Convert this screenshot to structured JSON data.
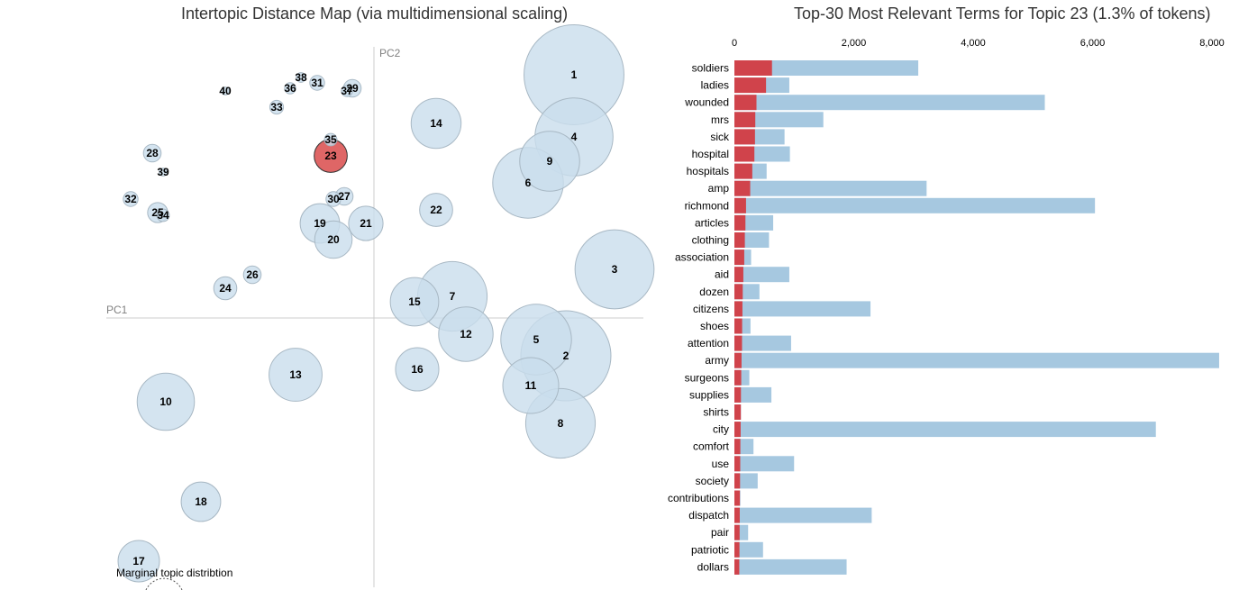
{
  "map": {
    "title": "Intertopic Distance Map (via multidimensional scaling)",
    "pc1_label": "PC1",
    "pc2_label": "PC2",
    "marginal_label": "Marginal topic distribtion"
  },
  "bars": {
    "title": "Top-30 Most Relevant Terms for Topic 23 (1.3% of tokens)"
  },
  "colors": {
    "bubble_fill": "#c9ddec",
    "bubble_stroke": "#a8b8c4",
    "selected_fill": "#d94b4b",
    "overall_bar": "#a6c8e0",
    "topic_bar": "#d0434b",
    "axis_line": "#cccccc"
  },
  "chart_data": [
    {
      "type": "scatter",
      "title": "Intertopic Distance Map (via multidimensional scaling)",
      "xlabel": "PC1",
      "ylabel": "PC2",
      "selected_topic": 23,
      "legend": "Marginal topic distribtion",
      "points": [
        {
          "topic": 1,
          "x": 0.74,
          "y": 0.9,
          "size": 3.2
        },
        {
          "topic": 2,
          "x": 0.71,
          "y": -0.14,
          "size": 2.6
        },
        {
          "topic": 3,
          "x": 0.89,
          "y": 0.18,
          "size": 2.0
        },
        {
          "topic": 4,
          "x": 0.74,
          "y": 0.67,
          "size": 1.95
        },
        {
          "topic": 5,
          "x": 0.6,
          "y": -0.08,
          "size": 1.6
        },
        {
          "topic": 6,
          "x": 0.57,
          "y": 0.5,
          "size": 1.6
        },
        {
          "topic": 7,
          "x": 0.29,
          "y": 0.08,
          "size": 1.55
        },
        {
          "topic": 8,
          "x": 0.69,
          "y": -0.39,
          "size": 1.55
        },
        {
          "topic": 9,
          "x": 0.65,
          "y": 0.58,
          "size": 1.15
        },
        {
          "topic": 10,
          "x": -0.77,
          "y": -0.31,
          "size": 1.05
        },
        {
          "topic": 11,
          "x": 0.58,
          "y": -0.25,
          "size": 1.0
        },
        {
          "topic": 12,
          "x": 0.34,
          "y": -0.06,
          "size": 0.95
        },
        {
          "topic": 13,
          "x": -0.29,
          "y": -0.21,
          "size": 0.9
        },
        {
          "topic": 14,
          "x": 0.23,
          "y": 0.72,
          "size": 0.8
        },
        {
          "topic": 15,
          "x": 0.15,
          "y": 0.06,
          "size": 0.75
        },
        {
          "topic": 16,
          "x": 0.16,
          "y": -0.19,
          "size": 0.6
        },
        {
          "topic": 17,
          "x": -0.87,
          "y": -0.9,
          "size": 0.55
        },
        {
          "topic": 18,
          "x": -0.64,
          "y": -0.68,
          "size": 0.5
        },
        {
          "topic": 19,
          "x": -0.2,
          "y": 0.35,
          "size": 0.5
        },
        {
          "topic": 20,
          "x": -0.15,
          "y": 0.29,
          "size": 0.45
        },
        {
          "topic": 21,
          "x": -0.03,
          "y": 0.35,
          "size": 0.38
        },
        {
          "topic": 22,
          "x": 0.23,
          "y": 0.4,
          "size": 0.35
        },
        {
          "topic": 23,
          "x": -0.16,
          "y": 0.6,
          "size": 0.35
        },
        {
          "topic": 24,
          "x": -0.55,
          "y": 0.11,
          "size": 0.17
        },
        {
          "topic": 25,
          "x": -0.8,
          "y": 0.39,
          "size": 0.13
        },
        {
          "topic": 26,
          "x": -0.45,
          "y": 0.16,
          "size": 0.1
        },
        {
          "topic": 27,
          "x": -0.11,
          "y": 0.45,
          "size": 0.1
        },
        {
          "topic": 28,
          "x": -0.82,
          "y": 0.61,
          "size": 0.1
        },
        {
          "topic": 29,
          "x": -0.08,
          "y": 0.85,
          "size": 0.1
        },
        {
          "topic": 30,
          "x": -0.15,
          "y": 0.44,
          "size": 0.07
        },
        {
          "topic": 31,
          "x": -0.21,
          "y": 0.87,
          "size": 0.07
        },
        {
          "topic": 32,
          "x": -0.9,
          "y": 0.44,
          "size": 0.07
        },
        {
          "topic": 33,
          "x": -0.36,
          "y": 0.78,
          "size": 0.06
        },
        {
          "topic": 34,
          "x": -0.78,
          "y": 0.38,
          "size": 0.05
        },
        {
          "topic": 35,
          "x": -0.16,
          "y": 0.66,
          "size": 0.05
        },
        {
          "topic": 36,
          "x": -0.31,
          "y": 0.85,
          "size": 0.04
        },
        {
          "topic": 37,
          "x": -0.1,
          "y": 0.84,
          "size": 0.04
        },
        {
          "topic": 38,
          "x": -0.27,
          "y": 0.89,
          "size": 0.03
        },
        {
          "topic": 39,
          "x": -0.78,
          "y": 0.54,
          "size": 0.02
        },
        {
          "topic": 40,
          "x": -0.55,
          "y": 0.84,
          "size": 0.02
        }
      ]
    },
    {
      "type": "bar",
      "orientation": "horizontal",
      "title": "Top-30 Most Relevant Terms for Topic 23 (1.3% of tokens)",
      "xlim": [
        0,
        8000
      ],
      "x_ticks": [
        "0",
        "2,000",
        "4,000",
        "6,000",
        "8,000"
      ],
      "categories": [
        "soldiers",
        "ladies",
        "wounded",
        "mrs",
        "sick",
        "hospital",
        "hospitals",
        "amp",
        "richmond",
        "articles",
        "clothing",
        "association",
        "aid",
        "dozen",
        "citizens",
        "shoes",
        "attention",
        "army",
        "surgeons",
        "supplies",
        "shirts",
        "city",
        "comfort",
        "use",
        "society",
        "contributions",
        "dispatch",
        "pair",
        "patriotic",
        "dollars"
      ],
      "series": [
        {
          "name": "overall",
          "values": [
            3080,
            920,
            5200,
            1490,
            840,
            930,
            540,
            3220,
            6040,
            650,
            580,
            280,
            920,
            420,
            2280,
            270,
            950,
            8120,
            250,
            620,
            110,
            7060,
            320,
            1000,
            390,
            100,
            2300,
            230,
            480,
            1880
          ]
        },
        {
          "name": "topic",
          "values": [
            630,
            530,
            370,
            350,
            345,
            335,
            300,
            265,
            195,
            185,
            175,
            165,
            150,
            140,
            135,
            130,
            128,
            120,
            115,
            110,
            108,
            105,
            100,
            98,
            95,
            92,
            90,
            88,
            85,
            82
          ]
        }
      ]
    }
  ]
}
